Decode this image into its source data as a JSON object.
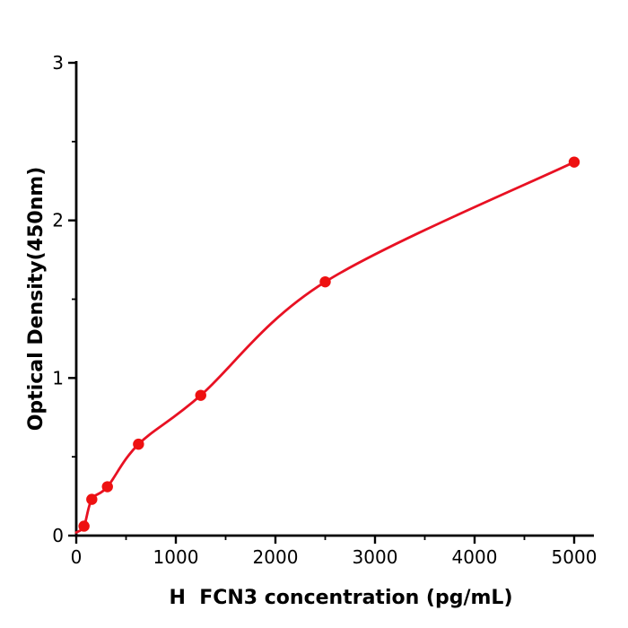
{
  "figure": {
    "background": "#ffffff"
  },
  "chart_data": {
    "type": "scatter",
    "title": "",
    "xlabel": "H  FCN3 concentration (pg/mL)",
    "ylabel": "Optical Density(450nm)",
    "x": [
      78,
      156,
      313,
      625,
      1250,
      2500,
      5000
    ],
    "y": [
      0.06,
      0.23,
      0.31,
      0.58,
      0.89,
      1.61,
      2.37
    ],
    "curve_start": {
      "x": 0,
      "y": 0.02
    },
    "xlim": [
      0,
      5000
    ],
    "ylim": [
      0,
      3
    ],
    "x_ticks": [
      0,
      1000,
      2000,
      3000,
      4000,
      5000
    ],
    "y_ticks": [
      0,
      1,
      2,
      3
    ],
    "x_minor_step": 500,
    "y_minor_step": 0.5,
    "grid": false,
    "legend": null,
    "point_color": "#ee1111",
    "line_color": "#e81123",
    "axis_color": "#000000"
  }
}
